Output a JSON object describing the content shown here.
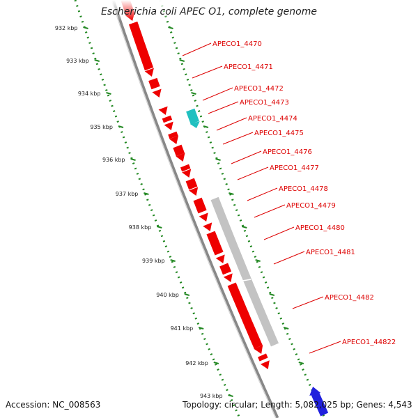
{
  "title": "Escherichia coli APEC O1, complete genome",
  "footer": {
    "accession": "Accession: NC_008563",
    "summary": "Topology: circular; Length: 5,082,025 bp; Genes: 4,543"
  },
  "ruler_labels": [
    "932 kbp",
    "933 kbp",
    "934 kbp",
    "935 kbp",
    "936 kbp",
    "937 kbp",
    "938 kbp",
    "939 kbp",
    "940 kbp",
    "941 kbp",
    "942 kbp",
    "943 kbp"
  ],
  "gene_labels": [
    "APECO1_4470",
    "APECO1_4471",
    "APECO1_4472",
    "APECO1_4473",
    "APECO1_4474",
    "APECO1_4475",
    "APECO1_4476",
    "APECO1_4477",
    "APECO1_4478",
    "APECO1_4479",
    "APECO1_4480",
    "APECO1_4481",
    "APECO1_4482",
    "APECO1_44822"
  ],
  "colors": {
    "cds": "#ee0000",
    "highlight": "#20c0c0",
    "region": "#c0c0c0",
    "backbone": "#888888",
    "ruler": "#228822",
    "label": "#dd0000",
    "other_strand": "#2020dd"
  }
}
